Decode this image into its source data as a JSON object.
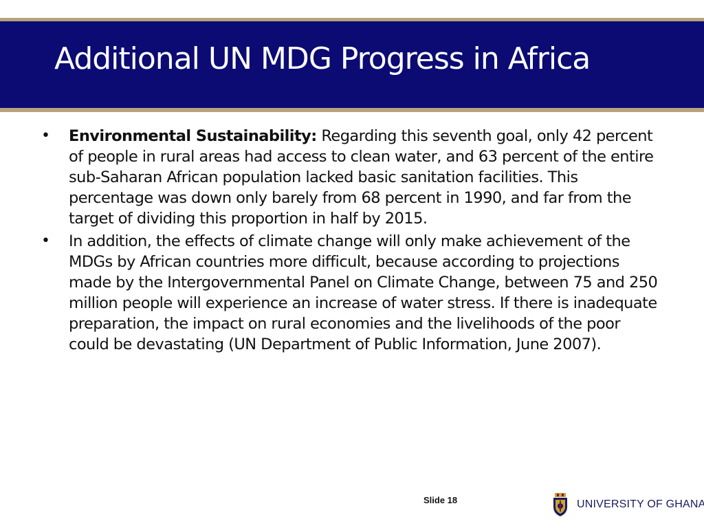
{
  "slide": {
    "title": "Additional UN MDG Progress in Africa",
    "bullet_glyph": "•",
    "bullets": [
      {
        "lead": "Environmental Sustainability:",
        "text": " Regarding this seventh goal, only 42 percent of people in rural areas had access to clean water, and 63 percent of the entire sub-Saharan African population lacked basic sanitation facilities. This percentage was down only barely from 68 percent in 1990, and far from the target of dividing this proportion in half by 2015."
      },
      {
        "lead": "",
        "text": "In addition, the effects of climate change will only make achievement of the MDGs by African countries more difficult, because according to projections made by the Intergovernmental Panel on Climate Change, between 75 and 250 million people will experience an increase of water stress. If there is inadequate preparation, the impact on rural economies and the livelihoods of the poor could be devastating (UN Department of Public Information, June 2007)."
      }
    ]
  },
  "footer": {
    "slide_number": "Slide 18",
    "university_name": "UNIVERSITY OF GHANA",
    "logo_icon": "university-crest-icon"
  },
  "colors": {
    "title_band": "#0b0b73",
    "gold_accent": "#b8a27a",
    "title_text": "#ffffff",
    "body_text": "#111111",
    "university_text": "#1a1a5e"
  }
}
